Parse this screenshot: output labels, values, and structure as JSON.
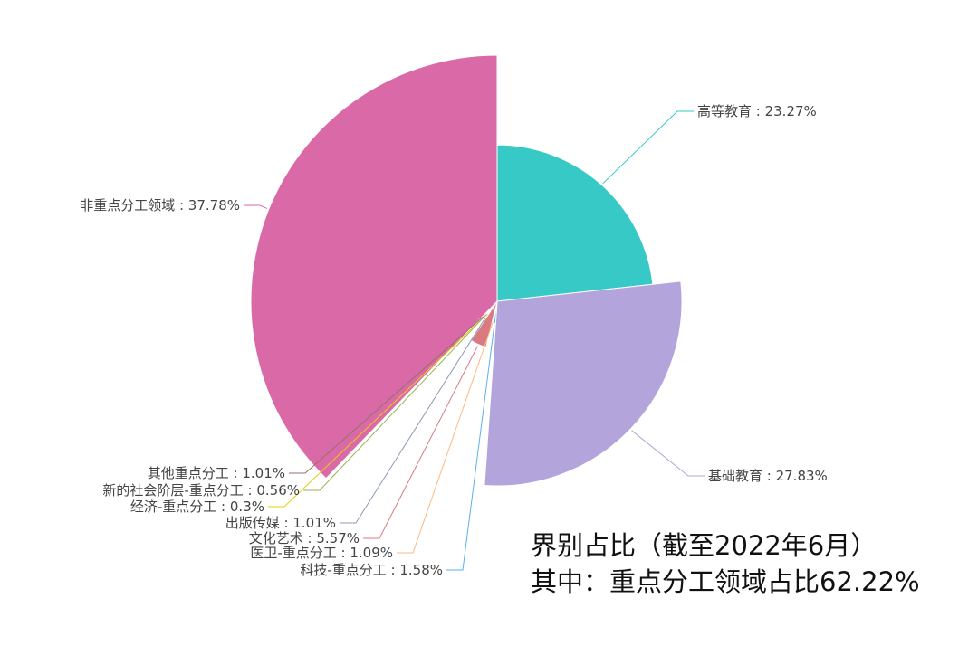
{
  "chart_data": {
    "type": "pie",
    "variant": "rose",
    "start_angle_deg": 90,
    "direction": "clockwise",
    "slices": [
      {
        "name": "高等教育",
        "value": 23.27,
        "label": "高等教育 : 23.27%",
        "color": "#36C9C6"
      },
      {
        "name": "基础教育",
        "value": 27.83,
        "label": "基础教育 : 27.83%",
        "color": "#B3A4DB"
      },
      {
        "name": "科技-重点分工",
        "value": 1.58,
        "label": "科技-重点分工 : 1.58%",
        "color": "#5AB1EF"
      },
      {
        "name": "医卫-重点分工",
        "value": 1.09,
        "label": "医卫-重点分工 : 1.09%",
        "color": "#FFB980"
      },
      {
        "name": "文化艺术",
        "value": 5.57,
        "label": "文化艺术 : 5.57%",
        "color": "#D87A80"
      },
      {
        "name": "出版传媒",
        "value": 1.01,
        "label": "出版传媒 : 1.01%",
        "color": "#8D98B3"
      },
      {
        "name": "经济-重点分工",
        "value": 0.3,
        "label": "经济-重点分工 : 0.3%",
        "color": "#E5CF0D"
      },
      {
        "name": "新的社会阶层-重点分工",
        "value": 0.56,
        "label": "新的社会阶层-重点分工 : 0.56%",
        "color": "#97B552"
      },
      {
        "name": "其他重点分工",
        "value": 1.01,
        "label": "其他重点分工 : 1.01%",
        "color": "#95706D"
      },
      {
        "name": "非重点分工领域",
        "value": 37.78,
        "label": "非重点分工领域 : 37.78%",
        "color": "#D96AA7"
      }
    ]
  },
  "caption": {
    "line1": "界别占比（截至2022年6月）",
    "line2": "其中：重点分工领域占比62.22%"
  }
}
